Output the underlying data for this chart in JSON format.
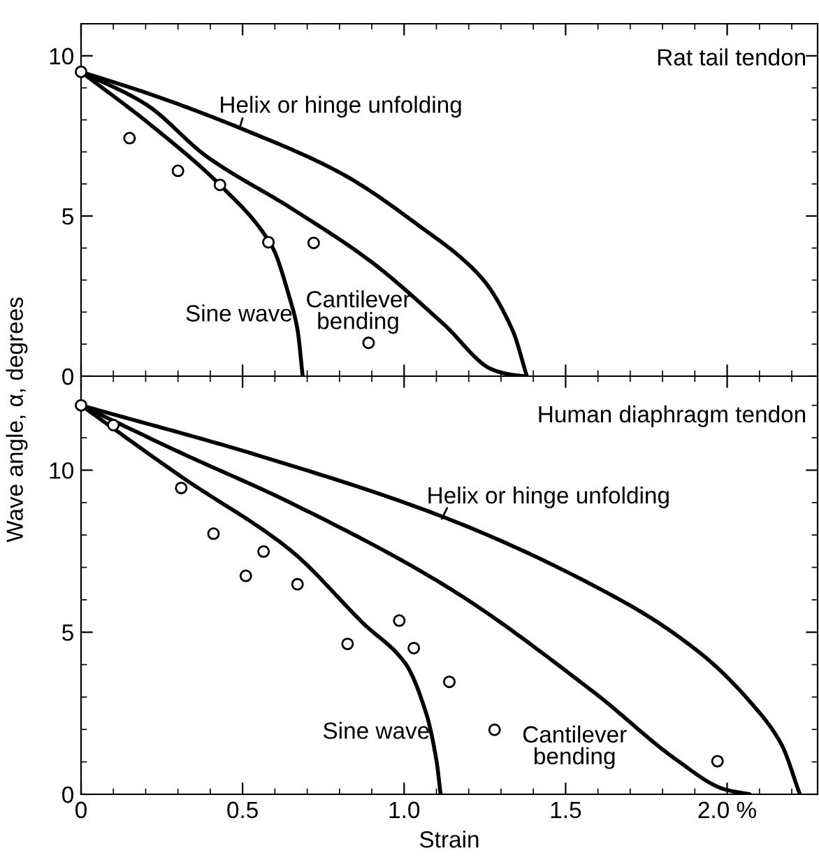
{
  "chart_data": [
    {
      "type": "line",
      "title": "Rat tail tendon",
      "ylabel": "Wave angle, α, degrees",
      "xlim": [
        0,
        2.28
      ],
      "ylim": [
        0,
        11
      ],
      "xticks": [
        0,
        0.5,
        1.0,
        1.5,
        2.0
      ],
      "yticks": [
        0,
        5,
        10
      ],
      "tick_labels": "y",
      "grid": false,
      "legend": false,
      "series": [
        {
          "name": "Helix or hinge unfolding",
          "color": "#000000",
          "marker": "none",
          "x": [
            0,
            0.232,
            0.508,
            0.8,
            1.043,
            1.238,
            1.335,
            1.38
          ],
          "values": [
            9.5,
            8.74,
            7.68,
            6.36,
            4.72,
            3.09,
            1.45,
            0
          ]
        },
        {
          "name": "Cantilever bending",
          "color": "#000000",
          "marker": "none",
          "x": [
            0,
            0.2,
            0.39,
            0.654,
            0.897,
            1.124,
            1.27,
            1.33,
            1.37
          ],
          "values": [
            9.5,
            8.49,
            6.85,
            5.22,
            3.58,
            1.61,
            0.22,
            0.05,
            0
          ]
        },
        {
          "name": "Sine wave",
          "color": "#000000",
          "marker": "none",
          "x": [
            0,
            0.216,
            0.44,
            0.59,
            0.646,
            0.67,
            0.686
          ],
          "values": [
            9.5,
            7.84,
            5.87,
            4.07,
            2.43,
            1.45,
            0
          ]
        },
        {
          "type": "scatter",
          "color": "#000000",
          "marker": "circle",
          "x": [
            0,
            0.15,
            0.3,
            0.43,
            0.58,
            0.72,
            0.89
          ],
          "values": [
            9.5,
            7.43,
            6.41,
            5.97,
            4.18,
            4.16,
            1.04
          ]
        }
      ]
    },
    {
      "type": "line",
      "title": "Human diaphragm tendon",
      "xlabel": "Strain",
      "xlim": [
        0,
        2.28
      ],
      "ylim": [
        0,
        12.9
      ],
      "xticks": [
        0,
        0.5,
        {
          "value": 1.0,
          "label": "1.0"
        },
        1.5,
        {
          "value": 2.0,
          "label": "2.0 %"
        }
      ],
      "yticks": [
        0,
        5,
        10
      ],
      "grid": false,
      "legend": false,
      "series": [
        {
          "name": "Helix or hinge unfolding",
          "color": "#000000",
          "marker": "none",
          "x": [
            0,
            0.55,
            1.133,
            1.683,
            1.925,
            2.087,
            2.168,
            2.225
          ],
          "values": [
            12,
            10.45,
            8.51,
            5.92,
            4.29,
            2.67,
            1.54,
            0
          ]
        },
        {
          "name": "Cantilever bending",
          "color": "#000000",
          "marker": "none",
          "x": [
            0,
            0.31,
            0.647,
            1.133,
            1.586,
            1.845,
            1.99,
            2.07
          ],
          "values": [
            12,
            10.53,
            9.0,
            6.4,
            3.16,
            1.05,
            0.16,
            0
          ]
        },
        {
          "name": "Sine wave",
          "color": "#000000",
          "marker": "none",
          "x": [
            0,
            0.31,
            0.647,
            0.874,
            1.003,
            1.068,
            1.1,
            1.113
          ],
          "values": [
            12,
            9.8,
            7.54,
            5.27,
            4.05,
            2.51,
            1.05,
            0
          ]
        },
        {
          "type": "scatter",
          "color": "#000000",
          "marker": "circle",
          "x": [
            0,
            0.1,
            0.31,
            0.41,
            0.565,
            0.51,
            0.67,
            0.825,
            0.985,
            1.03,
            1.14,
            1.28,
            1.97
          ],
          "values": [
            12,
            11.39,
            9.45,
            8.04,
            7.49,
            6.74,
            6.48,
            4.64,
            5.36,
            4.51,
            3.47,
            1.99,
            1.02
          ]
        }
      ]
    }
  ]
}
